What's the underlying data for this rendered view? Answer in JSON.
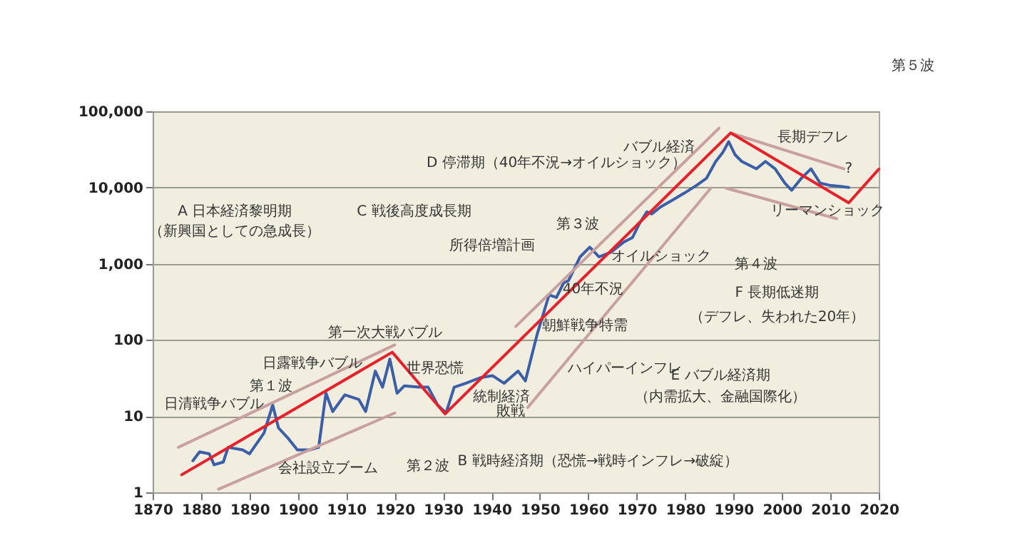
{
  "chart_data": {
    "type": "line",
    "xlim": [
      1870,
      2020
    ],
    "xticks": [
      1870,
      1880,
      1890,
      1900,
      1910,
      1920,
      1930,
      1940,
      1950,
      1960,
      1970,
      1980,
      1990,
      2000,
      2010,
      2020
    ],
    "ylim": [
      1,
      100000
    ],
    "yticks": [
      1,
      10,
      100,
      {
        "value": 1000,
        "label": "1,000"
      },
      {
        "value": 10000,
        "label": "10,000"
      },
      {
        "value": 100000,
        "label": "100,000"
      }
    ],
    "log": true,
    "grid": "y",
    "line_style": "solid",
    "marker": "none",
    "series": [
      {
        "color": "#3a5fa8",
        "x": [
          1878.3,
          1879.7,
          1881.7,
          1882.7,
          1884.6,
          1885.6,
          1888.6,
          1890,
          1893,
          1894.8,
          1896,
          1897.9,
          1899.9,
          1902.4,
          1904.3,
          1905.8,
          1907.2,
          1909.7,
          1912.6,
          1914,
          1916,
          1917.5,
          1919,
          1920.5,
          1922,
          1925,
          1926.9,
          1928.9,
          1930.6,
          1932.3,
          1934.7,
          1937.7,
          1940.2,
          1942.6,
          1945.5,
          1947,
          1948.5,
          1949.5,
          1951.9,
          1953.4,
          1954.9,
          1955.9,
          1958.3,
          1960.3,
          1962.2,
          1964.7,
          1967.2,
          1969.1,
          1970.6,
          1972.1,
          1973.1,
          1975,
          1977.5,
          1979.9,
          1982.4,
          1984.4,
          1986.3,
          1987.8,
          1989,
          1990.3,
          1991.7,
          1994.7,
          1996.6,
          1998.6,
          2000.6,
          2002,
          2004,
          2006,
          2007.9,
          2009.9,
          2011.8,
          2013.8
        ],
        "values": [
          2.6,
          3.4,
          3.2,
          2.3,
          2.5,
          3.9,
          3.6,
          3.2,
          6,
          14,
          7,
          5.2,
          3.6,
          3.6,
          3.9,
          20,
          11.5,
          19,
          16.5,
          11.5,
          39,
          24,
          56,
          20,
          25,
          24,
          24,
          14,
          11,
          24,
          27,
          32,
          34,
          27,
          39,
          29,
          69,
          123,
          390,
          360,
          560,
          600,
          1230,
          1650,
          1230,
          1420,
          1900,
          2200,
          3400,
          4800,
          4500,
          5600,
          6900,
          8500,
          10700,
          13200,
          21900,
          29000,
          40000,
          27000,
          22000,
          17600,
          22000,
          17600,
          11400,
          9200,
          13200,
          17600,
          11400,
          10700,
          10400,
          10000
        ]
      },
      {
        "color": "#c8a0a0",
        "x": [
          1875.3,
          1920
        ],
        "values": [
          3.9,
          86
        ]
      },
      {
        "color": "#c8a0a0",
        "x": [
          1883.6,
          1920
        ],
        "values": [
          1.1,
          11
        ]
      },
      {
        "color": "#c8a0a0",
        "x": [
          1945,
          1987
        ],
        "values": [
          150,
          60000
        ]
      },
      {
        "color": "#c8a0a0",
        "x": [
          1947.5,
          1985.3
        ],
        "values": [
          13,
          9800
        ]
      },
      {
        "color": "#c8a0a0",
        "x": [
          1989.8,
          2012.8
        ],
        "values": [
          51000,
          17600
        ]
      },
      {
        "color": "#c8a0a0",
        "x": [
          1988.5,
          2011.3
        ],
        "values": [
          9800,
          3900
        ]
      },
      {
        "color": "#e8202a",
        "x": [
          1876,
          1919.5,
          1930.4,
          1989.4,
          2013.8,
          2020
        ],
        "values": [
          1.7,
          69,
          10.7,
          52000,
          6300,
          17400
        ]
      }
    ],
    "annotations": [
      "第１波",
      "第２波",
      "第３波",
      "第４波",
      "第５波",
      "?",
      "A 日本経済黎明期",
      "（新興国としての急成長）",
      "C 戦後高度成長期",
      "D 停滞期（40年不況→オイルショック）",
      "バブル経済",
      "長期デフレ",
      "リーマンショック",
      "所得倍増計画",
      "オイルショック",
      "40年不況",
      "F 長期低迷期",
      "（デフレ、失われた20年）",
      "第一次大戦バブル",
      "朝鮮戦争特需",
      "日露戦争バブル",
      "日清戦争バブル",
      "世界恐慌",
      "統制経済",
      "ハイパーインフレ",
      "敗戦",
      "E バブル経済期",
      "（内需拡大、金融国際化）",
      "会社設立ブーム",
      "B 戦時経済期（恐慌→戦時インフレ→破綻）"
    ]
  }
}
